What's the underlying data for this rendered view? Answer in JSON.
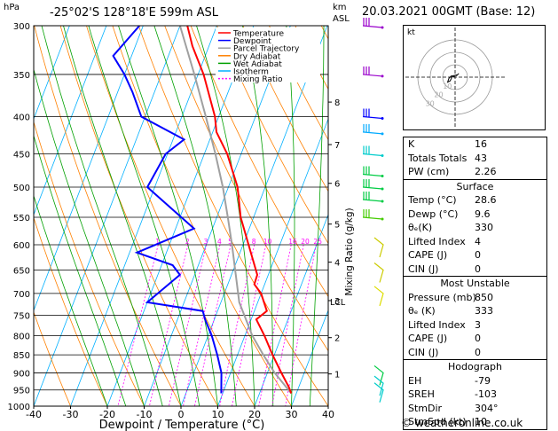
{
  "header": {
    "p_unit": "hPa",
    "location": "-25°02'S  128°18'E  599m  ASL",
    "km_label": "km",
    "asl_label": "ASL",
    "date": "20.03.2021  00GMT  (Base: 12)"
  },
  "colors": {
    "temperature": "#ff0000",
    "dewpoint": "#0000ff",
    "parcel": "#a0a0a0",
    "dry_adiabat": "#ff8000",
    "wet_adiabat": "#00a000",
    "isotherm": "#00b0ff",
    "mixing_ratio": "#ff00ff"
  },
  "chart_data": {
    "type": "line",
    "title": "",
    "xlabel": "Dewpoint / Temperature (°C)",
    "ylabel": "hPa",
    "x_ticks": [
      -40,
      -30,
      -20,
      -10,
      0,
      10,
      20,
      30,
      40
    ],
    "xlim": [
      -40,
      40
    ],
    "p_levels": [
      300,
      350,
      400,
      450,
      500,
      550,
      600,
      650,
      700,
      750,
      800,
      850,
      900,
      950,
      1000
    ],
    "ylim": [
      1000,
      300
    ],
    "y_scale": "log",
    "skew_deg_per_log": 33,
    "legend": [
      "Temperature",
      "Dewpoint",
      "Parcel Trajectory",
      "Dry Adiabat",
      "Wet Adiabat",
      "Isotherm",
      "Mixing Ratio"
    ],
    "legend_position": "top-right",
    "series": [
      {
        "name": "Temperature",
        "points": [
          {
            "p": 960,
            "t": 28.6
          },
          {
            "p": 940,
            "t": 27.2
          },
          {
            "p": 900,
            "t": 23.8
          },
          {
            "p": 850,
            "t": 19.5
          },
          {
            "p": 800,
            "t": 15.3
          },
          {
            "p": 760,
            "t": 11.4
          },
          {
            "p": 740,
            "t": 13.4
          },
          {
            "p": 700,
            "t": 10.0
          },
          {
            "p": 680,
            "t": 7.2
          },
          {
            "p": 660,
            "t": 7.0
          },
          {
            "p": 600,
            "t": 1.5
          },
          {
            "p": 550,
            "t": -3.5
          },
          {
            "p": 500,
            "t": -7.5
          },
          {
            "p": 450,
            "t": -13.8
          },
          {
            "p": 420,
            "t": -19.0
          },
          {
            "p": 400,
            "t": -21.0
          },
          {
            "p": 350,
            "t": -28.5
          },
          {
            "p": 320,
            "t": -34.5
          },
          {
            "p": 300,
            "t": -38.0
          }
        ]
      },
      {
        "name": "Dewpoint",
        "points": [
          {
            "p": 960,
            "t": 9.6
          },
          {
            "p": 900,
            "t": 7.5
          },
          {
            "p": 850,
            "t": 4.5
          },
          {
            "p": 800,
            "t": 1.0
          },
          {
            "p": 760,
            "t": -2.5
          },
          {
            "p": 740,
            "t": -4.0
          },
          {
            "p": 720,
            "t": -20.0
          },
          {
            "p": 660,
            "t": -14.0
          },
          {
            "p": 640,
            "t": -17.0
          },
          {
            "p": 615,
            "t": -28.0
          },
          {
            "p": 570,
            "t": -15.0
          },
          {
            "p": 500,
            "t": -32.0
          },
          {
            "p": 450,
            "t": -30.5
          },
          {
            "p": 430,
            "t": -27.0
          },
          {
            "p": 400,
            "t": -41.0
          },
          {
            "p": 370,
            "t": -46.0
          },
          {
            "p": 350,
            "t": -50.0
          },
          {
            "p": 330,
            "t": -55.0
          },
          {
            "p": 300,
            "t": -51.0
          }
        ]
      },
      {
        "name": "Parcel Trajectory",
        "points": [
          {
            "p": 960,
            "t": 28.6
          },
          {
            "p": 900,
            "t": 22.0
          },
          {
            "p": 850,
            "t": 17.0
          },
          {
            "p": 800,
            "t": 12.0
          },
          {
            "p": 720,
            "t": 5.0
          },
          {
            "p": 650,
            "t": 0.5
          },
          {
            "p": 600,
            "t": -3.0
          },
          {
            "p": 550,
            "t": -7.0
          },
          {
            "p": 500,
            "t": -11.5
          },
          {
            "p": 450,
            "t": -17.0
          },
          {
            "p": 400,
            "t": -23.5
          },
          {
            "p": 350,
            "t": -31.0
          },
          {
            "p": 300,
            "t": -40.0
          }
        ]
      }
    ],
    "mixing_ratio_labels": [
      "1",
      "2",
      "3",
      "4",
      "5",
      "8",
      "10",
      "16",
      "20",
      "25"
    ],
    "mixing_ratio_values": [
      1,
      2,
      3,
      4,
      5,
      8,
      10,
      16,
      20,
      25
    ],
    "mixing_label_p": 600,
    "km_ticks": [
      {
        "label": "1",
        "p": 903
      },
      {
        "label": "2",
        "p": 805
      },
      {
        "label": "3",
        "p": 716
      },
      {
        "label": "4",
        "p": 634
      },
      {
        "label": "5",
        "p": 562
      },
      {
        "label": "6",
        "p": 494
      },
      {
        "label": "7",
        "p": 437
      },
      {
        "label": "8",
        "p": 382
      }
    ],
    "lcl_label": "LCL",
    "lcl_p": 718,
    "right_axis_label": "Mixing Ratio (g/kg)",
    "wind_barbs_upper": [
      {
        "p": 300,
        "color": "#9900cc"
      },
      {
        "p": 350,
        "color": "#9900cc"
      },
      {
        "p": 400,
        "color": "#0000ff"
      },
      {
        "p": 420,
        "color": "#00aaff"
      },
      {
        "p": 450,
        "color": "#00cccc"
      },
      {
        "p": 480,
        "color": "#00cc44"
      },
      {
        "p": 500,
        "color": "#00cc44"
      },
      {
        "p": 520,
        "color": "#00cc44"
      },
      {
        "p": 550,
        "color": "#44cc00"
      }
    ],
    "wind_barbs_lower": [
      {
        "p": 600,
        "color": "#cccc00"
      },
      {
        "p": 650,
        "color": "#cccc00"
      },
      {
        "p": 700,
        "color": "#dddd00"
      },
      {
        "p": 900,
        "color": "#00cc44"
      },
      {
        "p": 930,
        "color": "#00cccc"
      },
      {
        "p": 950,
        "color": "#00cccc"
      }
    ]
  },
  "hodograph": {
    "unit": "kt",
    "ring_labels": [
      "10",
      "20",
      "30"
    ],
    "trace": [
      [
        0,
        0
      ],
      [
        -3,
        -1
      ],
      [
        -5,
        1
      ],
      [
        -6,
        4
      ],
      [
        -4,
        3
      ],
      [
        -2,
        -1
      ],
      [
        2,
        -2
      ],
      [
        3,
        -3
      ],
      [
        1,
        -1
      ]
    ]
  },
  "indices": {
    "top": [
      {
        "k": "K",
        "v": "16"
      },
      {
        "k": "Totals Totals",
        "v": "43"
      },
      {
        "k": "PW (cm)",
        "v": "2.26"
      }
    ],
    "surface_title": "Surface",
    "surface": [
      {
        "k": "Temp (°C)",
        "v": "28.6"
      },
      {
        "k": "Dewp (°C)",
        "v": "9.6"
      },
      {
        "k": "θₑ(K)",
        "v": "330"
      },
      {
        "k": "Lifted Index",
        "v": "4"
      },
      {
        "k": "CAPE (J)",
        "v": "0"
      },
      {
        "k": "CIN (J)",
        "v": "0"
      }
    ],
    "mu_title": "Most Unstable",
    "mu": [
      {
        "k": "Pressure (mb)",
        "v": "850"
      },
      {
        "k": "θₑ (K)",
        "v": "333"
      },
      {
        "k": "Lifted Index",
        "v": "3"
      },
      {
        "k": "CAPE (J)",
        "v": "0"
      },
      {
        "k": "CIN (J)",
        "v": "0"
      }
    ],
    "hodo_title": "Hodograph",
    "hodo": [
      {
        "k": "EH",
        "v": "-79"
      },
      {
        "k": "SREH",
        "v": "-103"
      },
      {
        "k": "StmDir",
        "v": "304°"
      },
      {
        "k": "StmSpd (kt)",
        "v": "10"
      }
    ]
  },
  "footer": "© weatheronline.co.uk"
}
